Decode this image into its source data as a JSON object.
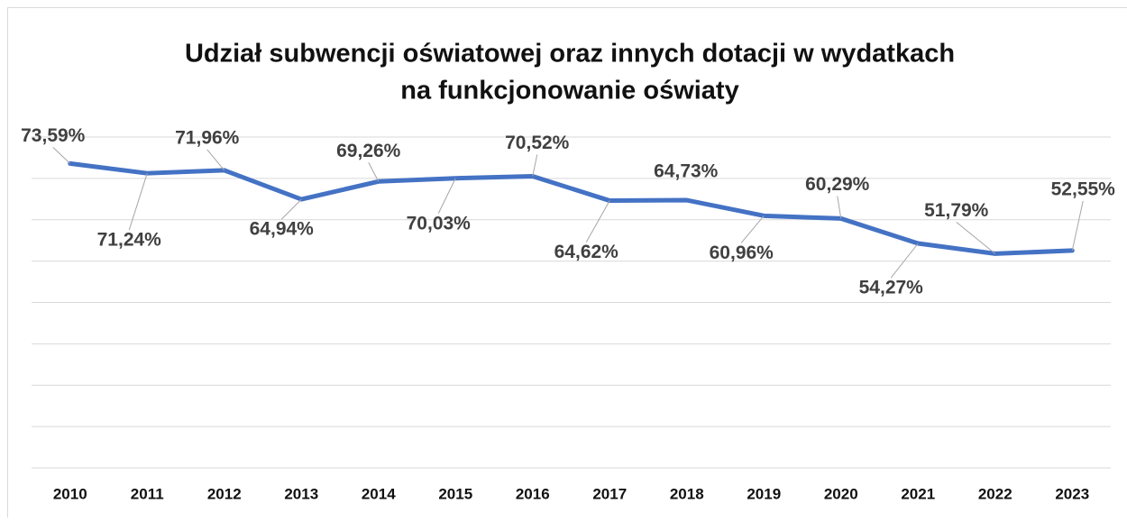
{
  "chart_data": {
    "type": "line",
    "title": [
      "Udział subwencji oświatowej oraz innych dotacji w wydatkach",
      "na funkcjonowanie oświaty"
    ],
    "categories": [
      "2010",
      "2011",
      "2012",
      "2013",
      "2014",
      "2015",
      "2016",
      "2017",
      "2018",
      "2019",
      "2020",
      "2021",
      "2022",
      "2023"
    ],
    "series": [
      {
        "name": "Udział",
        "color": "#4472c4",
        "values": [
          73.59,
          71.24,
          71.96,
          64.94,
          69.26,
          70.03,
          70.52,
          64.62,
          64.73,
          60.96,
          60.29,
          54.27,
          51.79,
          52.55
        ],
        "value_labels": [
          "73,59%",
          "71,24%",
          "71,96%",
          "64,94%",
          "69,26%",
          "70,03%",
          "70,52%",
          "64,62%",
          "64,73%",
          "60,96%",
          "60,29%",
          "54,27%",
          "51,79%",
          "52,55%"
        ]
      }
    ],
    "ylim": [
      0,
      80
    ],
    "yticks": [
      0,
      10,
      20,
      30,
      40,
      50,
      60,
      70,
      80
    ],
    "grid": true
  }
}
